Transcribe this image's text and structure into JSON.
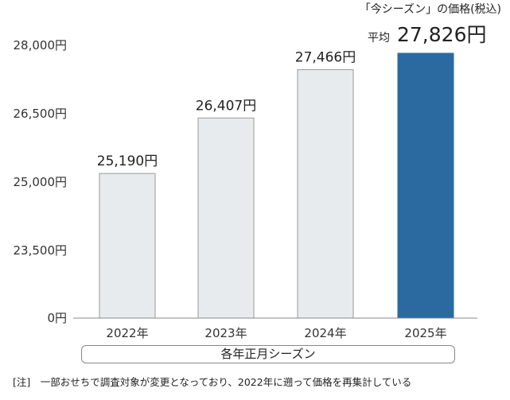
{
  "chart_data": {
    "type": "bar",
    "categories": [
      "2022年",
      "2023年",
      "2024年",
      "2025年"
    ],
    "values": [
      25190,
      26407,
      27466,
      27826
    ],
    "value_labels": [
      "25,190円",
      "26,407円",
      "27,466円",
      "27,826円"
    ],
    "y_ticks": [
      "0円",
      "23,500円",
      "25,000円",
      "26,500円",
      "28,000円"
    ],
    "y_axis_break": "0円 then 23,500円–28,000円 (truncated axis)",
    "grid": false,
    "highlight_index": 3,
    "highlight_prefix": "平均",
    "highlight_caption": "「今シーズン」の価格(税込)",
    "x_caption": "各年正月シーズン",
    "colors": {
      "bar": "#e8ebee",
      "bar_edge": "#9a9a9a",
      "highlight": "#2b6aa0"
    }
  },
  "footnote": "[注]　一部おせちで調査対象が変更となっており、2022年に遡って価格を再集計している"
}
